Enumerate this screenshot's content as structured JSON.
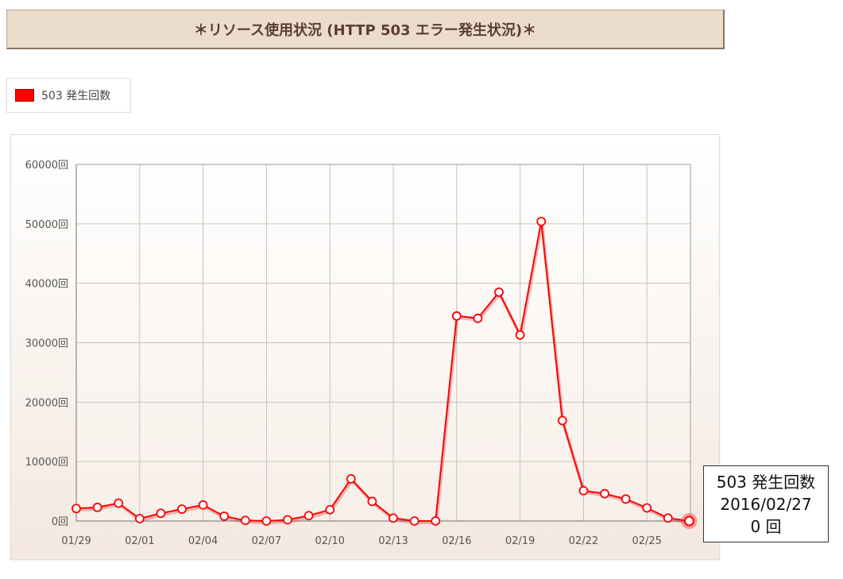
{
  "title": "＊リソース使用状況 (HTTP 503 エラー発生状況)＊",
  "legend": {
    "label": "503 発生回数",
    "color": "#ff0000"
  },
  "tooltip": {
    "series": "503 発生回数",
    "date": "2016/02/27",
    "value": "0 回"
  },
  "chart_data": {
    "type": "line",
    "title": "",
    "xlabel": "",
    "ylabel": "",
    "ylim": [
      0,
      60000
    ],
    "yticks": [
      0,
      10000,
      20000,
      30000,
      40000,
      50000,
      60000
    ],
    "ytick_labels": [
      "0回",
      "10000回",
      "20000回",
      "30000回",
      "40000回",
      "50000回",
      "60000回"
    ],
    "x_tick_labels": [
      "01/29",
      "02/01",
      "02/04",
      "02/07",
      "02/10",
      "02/13",
      "02/16",
      "02/19",
      "02/22",
      "02/25"
    ],
    "grid": true,
    "legend_position": "top-left",
    "x": [
      "01/29",
      "01/30",
      "01/31",
      "02/01",
      "02/02",
      "02/03",
      "02/04",
      "02/05",
      "02/06",
      "02/07",
      "02/08",
      "02/09",
      "02/10",
      "02/11",
      "02/12",
      "02/13",
      "02/14",
      "02/15",
      "02/16",
      "02/17",
      "02/18",
      "02/19",
      "02/20",
      "02/21",
      "02/22",
      "02/23",
      "02/24",
      "02/25",
      "02/26",
      "02/27"
    ],
    "series": [
      {
        "name": "503 発生回数",
        "color": "#ff0000",
        "values": [
          2100,
          2300,
          3000,
          400,
          1300,
          2000,
          2700,
          800,
          100,
          0,
          200,
          900,
          1900,
          7100,
          3300,
          500,
          0,
          0,
          34500,
          34100,
          38500,
          31300,
          50400,
          16900,
          5100,
          4600,
          3700,
          2200,
          500,
          0
        ]
      }
    ],
    "highlight_index": 29
  }
}
